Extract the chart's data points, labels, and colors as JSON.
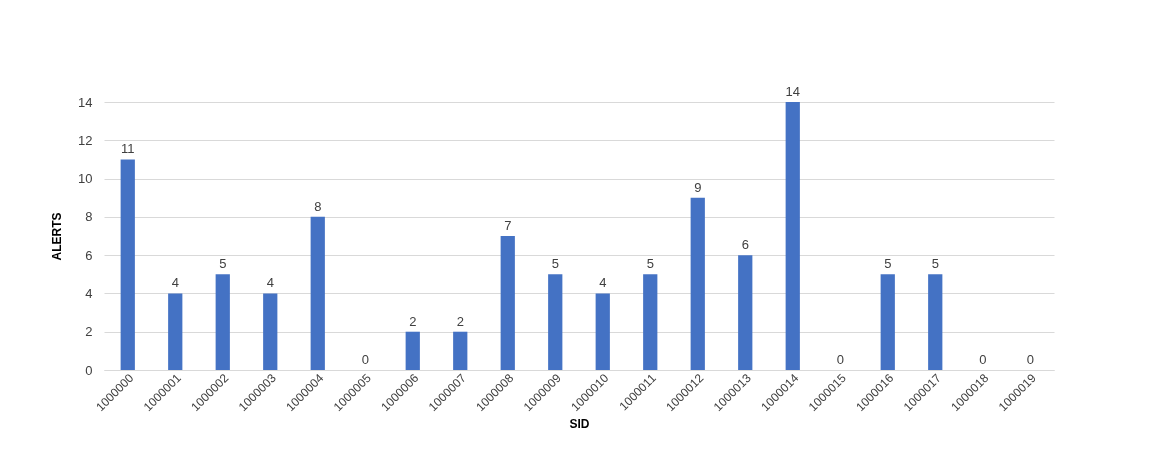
{
  "chart_data": {
    "type": "bar",
    "xlabel": "SID",
    "ylabel": "ALERTS",
    "categories": [
      "1000000",
      "1000001",
      "1000002",
      "1000003",
      "1000004",
      "1000005",
      "1000006",
      "1000007",
      "1000008",
      "1000009",
      "1000010",
      "1000011",
      "1000012",
      "1000013",
      "1000014",
      "1000015",
      "1000016",
      "1000017",
      "1000018",
      "1000019"
    ],
    "values": [
      11,
      4,
      5,
      4,
      8,
      0,
      2,
      2,
      7,
      5,
      4,
      5,
      9,
      6,
      14,
      0,
      5,
      5,
      0,
      0
    ],
    "color": "#4472c4",
    "ylim": [
      0,
      14
    ],
    "yticks": [
      0,
      2,
      4,
      6,
      8,
      10,
      12,
      14
    ],
    "grid": "y",
    "data_labels": true
  }
}
